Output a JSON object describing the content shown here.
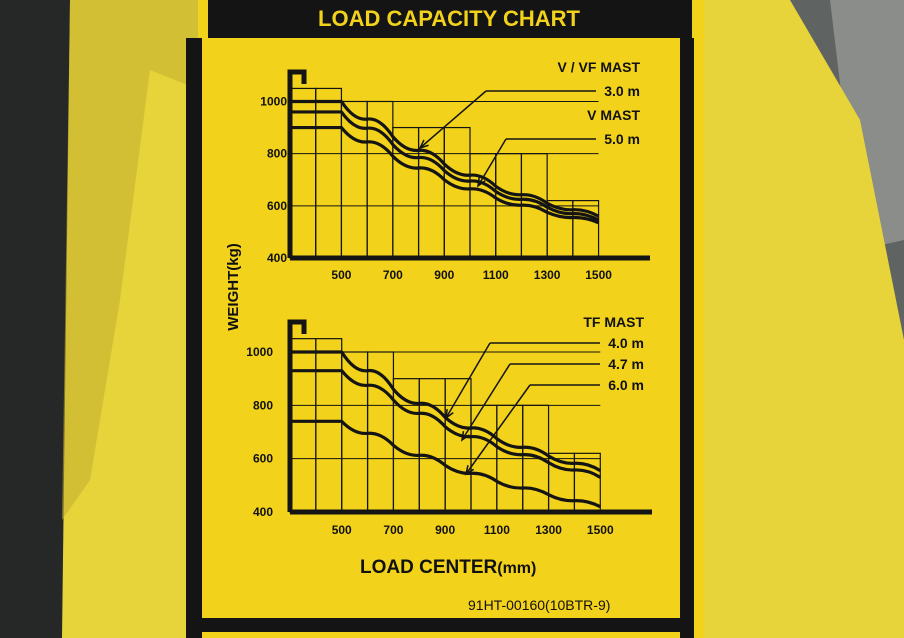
{
  "colors": {
    "plate": "#f2d21a",
    "ink": "#141414",
    "body": "#e9d63a",
    "left_panel": "#2a2b2b"
  },
  "header": {
    "title": "LOAD CAPACITY CHART"
  },
  "ylabel": "WEIGHT(kg)",
  "xlabel_main": "LOAD CENTER",
  "xlabel_unit": "(mm)",
  "part_number": "91HT-00160(10BTR-9)",
  "chart_data": [
    {
      "type": "line",
      "title": "V/VF MAST, V MAST",
      "x_ticks": [
        500,
        700,
        900,
        1100,
        1300,
        1500
      ],
      "y_ticks": [
        400,
        600,
        800,
        1000
      ],
      "xlim": [
        300,
        1700
      ],
      "ylim": [
        400,
        1090
      ],
      "legend": [
        {
          "text": "V / VF  MAST",
          "kind": "heading"
        },
        {
          "text": "3.0 m",
          "kind": "callout",
          "series": 0
        },
        {
          "text": "V  MAST",
          "kind": "heading"
        },
        {
          "text": "5.0 m",
          "kind": "callout",
          "series": 1
        }
      ],
      "series": [
        {
          "name": "3.0 m",
          "x": [
            300,
            500,
            700,
            900,
            1100,
            1300,
            1500
          ],
          "y": [
            1000,
            1000,
            865,
            760,
            675,
            610,
            560
          ]
        },
        {
          "name": "5.0 m",
          "x": [
            300,
            500,
            700,
            900,
            1100,
            1300,
            1500
          ],
          "y": [
            960,
            960,
            835,
            735,
            655,
            595,
            545
          ]
        },
        {
          "name": "",
          "x": [
            300,
            500,
            700,
            900,
            1100,
            1300,
            1500
          ],
          "y": [
            900,
            900,
            790,
            700,
            630,
            575,
            535
          ]
        }
      ]
    },
    {
      "type": "line",
      "title": "TF MAST",
      "x_ticks": [
        500,
        700,
        900,
        1100,
        1300,
        1500
      ],
      "y_ticks": [
        400,
        600,
        800,
        1000
      ],
      "xlim": [
        300,
        1700
      ],
      "ylim": [
        400,
        1090
      ],
      "legend": [
        {
          "text": "TF  MAST",
          "kind": "heading"
        },
        {
          "text": "4.0 m",
          "kind": "callout",
          "series": 0
        },
        {
          "text": "4.7 m",
          "kind": "callout",
          "series": 1
        },
        {
          "text": "6.0 m",
          "kind": "callout",
          "series": 2
        }
      ],
      "series": [
        {
          "name": "4.0 m",
          "x": [
            300,
            500,
            700,
            900,
            1100,
            1300,
            1500
          ],
          "y": [
            1000,
            1000,
            860,
            755,
            675,
            610,
            555
          ]
        },
        {
          "name": "4.7 m",
          "x": [
            300,
            500,
            700,
            900,
            1100,
            1300,
            1500
          ],
          "y": [
            930,
            930,
            820,
            720,
            645,
            585,
            530
          ]
        },
        {
          "name": "6.0 m",
          "x": [
            300,
            500,
            700,
            900,
            1100,
            1300,
            1500
          ],
          "y": [
            740,
            740,
            650,
            575,
            515,
            465,
            420
          ]
        }
      ]
    }
  ]
}
